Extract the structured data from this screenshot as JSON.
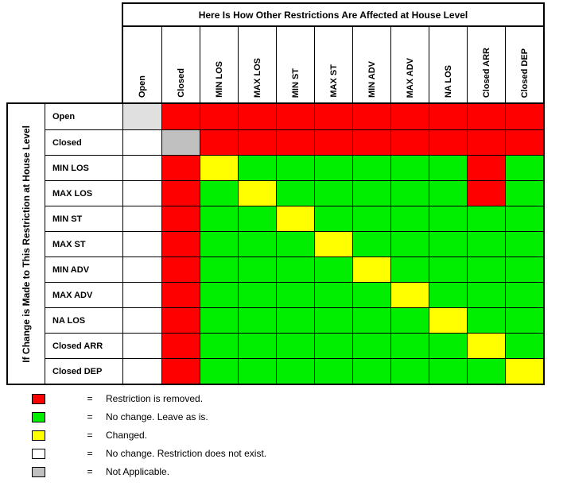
{
  "header": {
    "title": "Here Is How Other Restrictions Are Affected at House Level"
  },
  "side": {
    "title": "If Change is Made to This Restriction at House Level"
  },
  "columns": [
    "Open",
    "Closed",
    "MIN LOS",
    "MAX LOS",
    "MIN ST",
    "MAX ST",
    "MIN ADV",
    "MAX ADV",
    "NA LOS",
    "Closed ARR",
    "Closed DEP"
  ],
  "rows": [
    "Open",
    "Closed",
    "MIN LOS",
    "MAX LOS",
    "MIN ST",
    "MAX ST",
    "MIN ADV",
    "MAX ADV",
    "NA LOS",
    "Closed ARR",
    "Closed DEP"
  ],
  "colors": {
    "R": "#ff0000",
    "G": "#00ee00",
    "Y": "#ffff00",
    "W": "#ffffff",
    "N": "#c0c0c0",
    "L": "#e0e0e0",
    "grid": "#000000"
  },
  "matrix": [
    [
      "L",
      "R",
      "R",
      "R",
      "R",
      "R",
      "R",
      "R",
      "R",
      "R",
      "R"
    ],
    [
      "W",
      "N",
      "R",
      "R",
      "R",
      "R",
      "R",
      "R",
      "R",
      "R",
      "R"
    ],
    [
      "W",
      "R",
      "Y",
      "G",
      "G",
      "G",
      "G",
      "G",
      "G",
      "R",
      "G"
    ],
    [
      "W",
      "R",
      "G",
      "Y",
      "G",
      "G",
      "G",
      "G",
      "G",
      "R",
      "G"
    ],
    [
      "W",
      "R",
      "G",
      "G",
      "Y",
      "G",
      "G",
      "G",
      "G",
      "G",
      "G"
    ],
    [
      "W",
      "R",
      "G",
      "G",
      "G",
      "Y",
      "G",
      "G",
      "G",
      "G",
      "G"
    ],
    [
      "W",
      "R",
      "G",
      "G",
      "G",
      "G",
      "Y",
      "G",
      "G",
      "G",
      "G"
    ],
    [
      "W",
      "R",
      "G",
      "G",
      "G",
      "G",
      "G",
      "Y",
      "G",
      "G",
      "G"
    ],
    [
      "W",
      "R",
      "G",
      "G",
      "G",
      "G",
      "G",
      "G",
      "Y",
      "G",
      "G"
    ],
    [
      "W",
      "R",
      "G",
      "G",
      "G",
      "G",
      "G",
      "G",
      "G",
      "Y",
      "G"
    ],
    [
      "W",
      "R",
      "G",
      "G",
      "G",
      "G",
      "G",
      "G",
      "G",
      "G",
      "Y"
    ]
  ],
  "legend": {
    "equals": "=",
    "items": [
      {
        "key": "removed",
        "color": "R",
        "label": "Restriction is removed."
      },
      {
        "key": "no-change",
        "color": "G",
        "label": "No change. Leave as is."
      },
      {
        "key": "changed",
        "color": "Y",
        "label": "Changed."
      },
      {
        "key": "not-exist",
        "color": "W",
        "label": "No change. Restriction does not exist."
      },
      {
        "key": "not-applicable",
        "color": "N",
        "label": "Not Applicable."
      }
    ]
  },
  "chart_data": {
    "type": "heatmap",
    "title": "Here Is How Other Restrictions Are Affected at House Level",
    "row_axis_label": "If Change is Made to This Restriction at House Level",
    "columns": [
      "Open",
      "Closed",
      "MIN LOS",
      "MAX LOS",
      "MIN ST",
      "MAX ST",
      "MIN ADV",
      "MAX ADV",
      "NA LOS",
      "Closed ARR",
      "Closed DEP"
    ],
    "rows": [
      "Open",
      "Closed",
      "MIN LOS",
      "MAX LOS",
      "MIN ST",
      "MAX ST",
      "MIN ADV",
      "MAX ADV",
      "NA LOS",
      "Closed ARR",
      "Closed DEP"
    ],
    "values": [
      [
        "L",
        "R",
        "R",
        "R",
        "R",
        "R",
        "R",
        "R",
        "R",
        "R",
        "R"
      ],
      [
        "W",
        "N",
        "R",
        "R",
        "R",
        "R",
        "R",
        "R",
        "R",
        "R",
        "R"
      ],
      [
        "W",
        "R",
        "Y",
        "G",
        "G",
        "G",
        "G",
        "G",
        "G",
        "R",
        "G"
      ],
      [
        "W",
        "R",
        "G",
        "Y",
        "G",
        "G",
        "G",
        "G",
        "G",
        "R",
        "G"
      ],
      [
        "W",
        "R",
        "G",
        "G",
        "Y",
        "G",
        "G",
        "G",
        "G",
        "G",
        "G"
      ],
      [
        "W",
        "R",
        "G",
        "G",
        "G",
        "Y",
        "G",
        "G",
        "G",
        "G",
        "G"
      ],
      [
        "W",
        "R",
        "G",
        "G",
        "G",
        "G",
        "Y",
        "G",
        "G",
        "G",
        "G"
      ],
      [
        "W",
        "R",
        "G",
        "G",
        "G",
        "G",
        "G",
        "Y",
        "G",
        "G",
        "G"
      ],
      [
        "W",
        "R",
        "G",
        "G",
        "G",
        "G",
        "G",
        "G",
        "Y",
        "G",
        "G"
      ],
      [
        "W",
        "R",
        "G",
        "G",
        "G",
        "G",
        "G",
        "G",
        "G",
        "Y",
        "G"
      ],
      [
        "W",
        "R",
        "G",
        "G",
        "G",
        "G",
        "G",
        "G",
        "G",
        "G",
        "Y"
      ]
    ],
    "value_meanings": {
      "R": "Restriction is removed.",
      "G": "No change. Leave as is.",
      "Y": "Changed.",
      "W": "No change. Restriction does not exist.",
      "N": "Not Applicable.",
      "L": "Not Applicable."
    },
    "legend_position": "bottom-left",
    "grid": true
  }
}
